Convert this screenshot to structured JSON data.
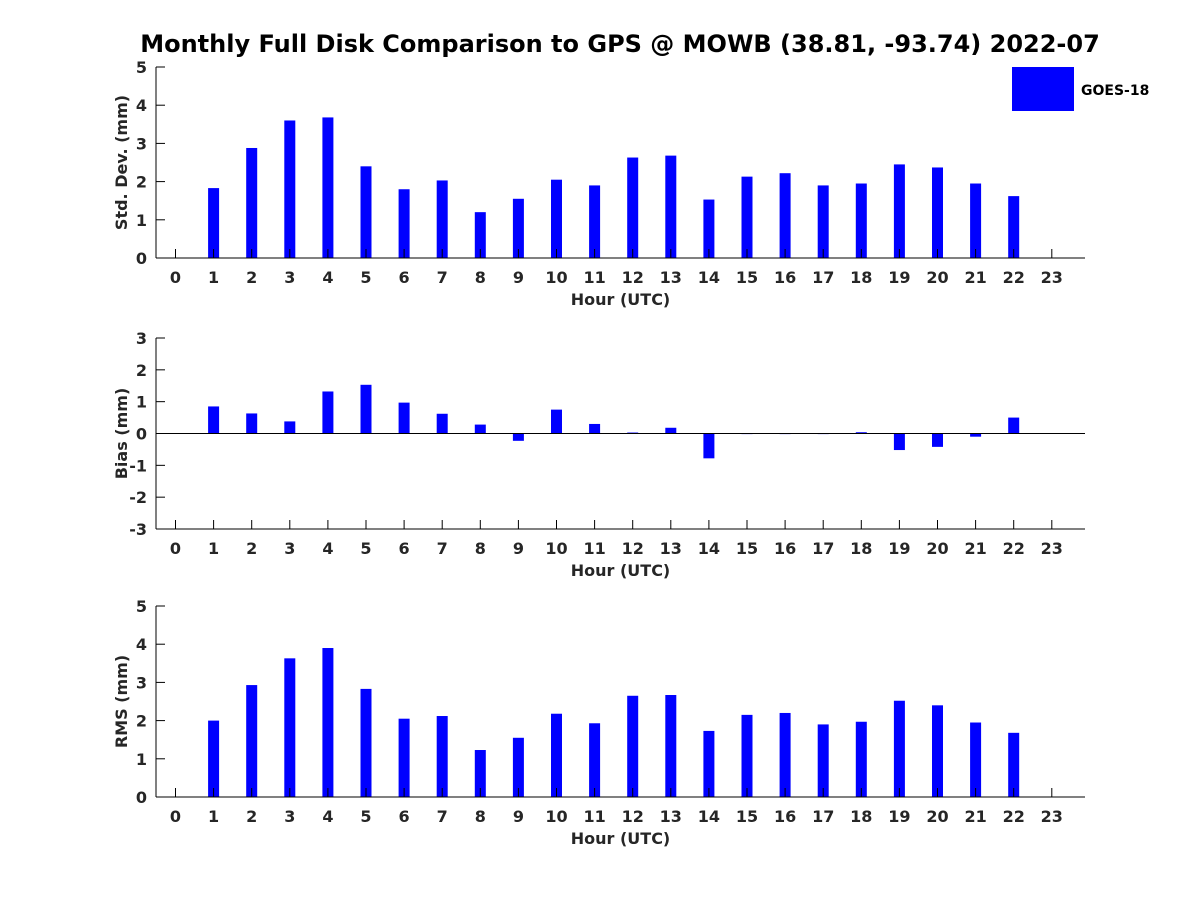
{
  "chart_data": {
    "type": "bar",
    "title": "Monthly Full Disk Comparison to GPS @ MOWB (38.81, -93.74) 2022-07",
    "legend": {
      "label": "GOES-18",
      "color": "#0000ff",
      "placement": "top-right"
    },
    "panels": [
      {
        "ylabel": "Std. Dev. (mm)",
        "xlabel": "Hour (UTC)",
        "ylim": [
          0,
          5
        ],
        "yticks": [
          0,
          1,
          2,
          3,
          4,
          5
        ],
        "categories": [
          0,
          1,
          2,
          3,
          4,
          5,
          6,
          7,
          8,
          9,
          10,
          11,
          12,
          13,
          14,
          15,
          16,
          17,
          18,
          19,
          20,
          21,
          22,
          23
        ],
        "values": [
          null,
          1.83,
          2.88,
          3.6,
          3.68,
          2.4,
          1.8,
          2.03,
          1.2,
          1.55,
          2.05,
          1.9,
          2.63,
          2.68,
          1.53,
          2.13,
          2.22,
          1.9,
          1.95,
          2.45,
          2.37,
          1.95,
          1.62,
          null
        ]
      },
      {
        "ylabel": "Bias (mm)",
        "xlabel": "Hour (UTC)",
        "ylim": [
          -3,
          3
        ],
        "yticks": [
          -3,
          -2,
          -1,
          0,
          1,
          2,
          3
        ],
        "zero_line": true,
        "categories": [
          0,
          1,
          2,
          3,
          4,
          5,
          6,
          7,
          8,
          9,
          10,
          11,
          12,
          13,
          14,
          15,
          16,
          17,
          18,
          19,
          20,
          21,
          22,
          23
        ],
        "values": [
          null,
          0.85,
          0.63,
          0.38,
          1.32,
          1.53,
          0.97,
          0.62,
          0.28,
          -0.23,
          0.75,
          0.3,
          0.03,
          0.18,
          -0.78,
          0,
          -0.01,
          -0.01,
          0.04,
          -0.52,
          -0.42,
          -0.1,
          0.5,
          null
        ]
      },
      {
        "ylabel": "RMS (mm)",
        "xlabel": "Hour (UTC)",
        "ylim": [
          0,
          5
        ],
        "yticks": [
          0,
          1,
          2,
          3,
          4,
          5
        ],
        "categories": [
          0,
          1,
          2,
          3,
          4,
          5,
          6,
          7,
          8,
          9,
          10,
          11,
          12,
          13,
          14,
          15,
          16,
          17,
          18,
          19,
          20,
          21,
          22,
          23
        ],
        "values": [
          null,
          2.0,
          2.93,
          3.63,
          3.9,
          2.83,
          2.05,
          2.12,
          1.23,
          1.55,
          2.18,
          1.93,
          2.65,
          2.67,
          1.73,
          2.15,
          2.2,
          1.9,
          1.97,
          2.52,
          2.4,
          1.95,
          1.68,
          null
        ]
      }
    ]
  }
}
